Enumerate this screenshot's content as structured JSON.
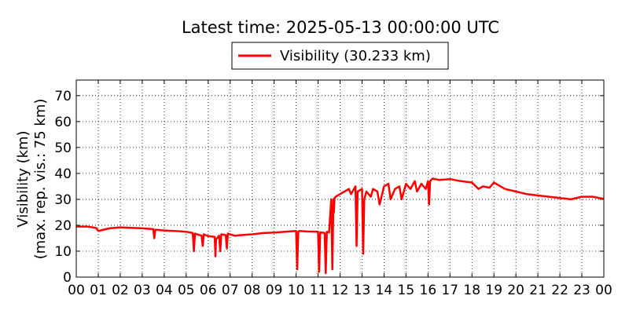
{
  "chart_data": {
    "type": "line",
    "title": "Latest time: 2025-05-13 00:00:00 UTC",
    "ylabel_lines": [
      "Visibility (km)",
      "(max. rep. vis.: 75 km)"
    ],
    "xlabel": "",
    "x_tick_labels": [
      "00",
      "01",
      "02",
      "03",
      "04",
      "05",
      "06",
      "07",
      "08",
      "09",
      "10",
      "11",
      "12",
      "13",
      "14",
      "15",
      "16",
      "17",
      "18",
      "19",
      "20",
      "21",
      "22",
      "23",
      "00"
    ],
    "xlim": [
      0,
      24
    ],
    "ylim": [
      0,
      76
    ],
    "y_ticks": [
      0,
      10,
      20,
      30,
      40,
      50,
      60,
      70
    ],
    "grid": true,
    "legend_position": "top-center",
    "series": [
      {
        "name": "Visibility (30.233 km)",
        "color": "#ff0000",
        "x": [
          0.0,
          0.5,
          0.9,
          1.0,
          1.2,
          1.5,
          2.0,
          2.5,
          3.0,
          3.5,
          3.55,
          3.6,
          4.0,
          4.5,
          5.0,
          5.3,
          5.35,
          5.4,
          5.5,
          5.7,
          5.75,
          5.8,
          6.0,
          6.3,
          6.33,
          6.36,
          6.5,
          6.55,
          6.6,
          6.8,
          6.85,
          6.9,
          7.0,
          7.2,
          7.5,
          8.0,
          8.5,
          9.0,
          9.5,
          10.0,
          10.05,
          10.1,
          10.15,
          10.5,
          11.0,
          11.05,
          11.1,
          11.3,
          11.35,
          11.4,
          11.5,
          11.6,
          11.65,
          11.7,
          11.72,
          11.75,
          11.8,
          12.0,
          12.2,
          12.4,
          12.5,
          12.7,
          12.75,
          12.8,
          13.0,
          13.05,
          13.1,
          13.2,
          13.4,
          13.5,
          13.7,
          13.8,
          14.0,
          14.2,
          14.3,
          14.5,
          14.7,
          14.8,
          15.0,
          15.2,
          15.4,
          15.5,
          15.7,
          15.9,
          16.0,
          16.05,
          16.1,
          16.2,
          16.5,
          17.0,
          17.5,
          18.0,
          18.3,
          18.5,
          18.8,
          19.0,
          19.3,
          19.5,
          20.0,
          20.5,
          21.0,
          21.5,
          22.0,
          22.5,
          23.0,
          23.5,
          24.0
        ],
        "values": [
          19.5,
          19.5,
          19.0,
          17.8,
          18.2,
          18.8,
          19.2,
          19.0,
          18.8,
          18.5,
          15.0,
          18.3,
          18.0,
          17.8,
          17.5,
          17.0,
          10.0,
          16.8,
          16.5,
          16.0,
          12.0,
          16.5,
          15.8,
          15.5,
          8.0,
          14.5,
          16.0,
          10.0,
          16.5,
          16.2,
          11.0,
          16.8,
          16.5,
          16.0,
          16.2,
          16.5,
          17.0,
          17.2,
          17.5,
          17.8,
          3.0,
          17.5,
          17.8,
          17.6,
          17.5,
          2.0,
          17.3,
          17.0,
          1.5,
          17.5,
          17.2,
          30.0,
          3.0,
          30.0,
          25.0,
          30.5,
          31.0,
          32.0,
          33.0,
          34.0,
          32.0,
          35.0,
          12.0,
          33.0,
          34.0,
          9.0,
          30.0,
          33.0,
          31.0,
          34.0,
          33.0,
          28.0,
          35.0,
          36.0,
          30.0,
          34.0,
          35.0,
          30.0,
          36.0,
          34.0,
          37.0,
          33.0,
          36.0,
          34.0,
          37.0,
          28.0,
          37.0,
          38.0,
          37.5,
          37.8,
          37.0,
          36.5,
          34.0,
          35.0,
          34.5,
          36.5,
          35.0,
          34.0,
          33.0,
          32.0,
          31.5,
          31.0,
          30.5,
          30.0,
          31.0,
          31.0,
          30.2
        ]
      }
    ]
  }
}
